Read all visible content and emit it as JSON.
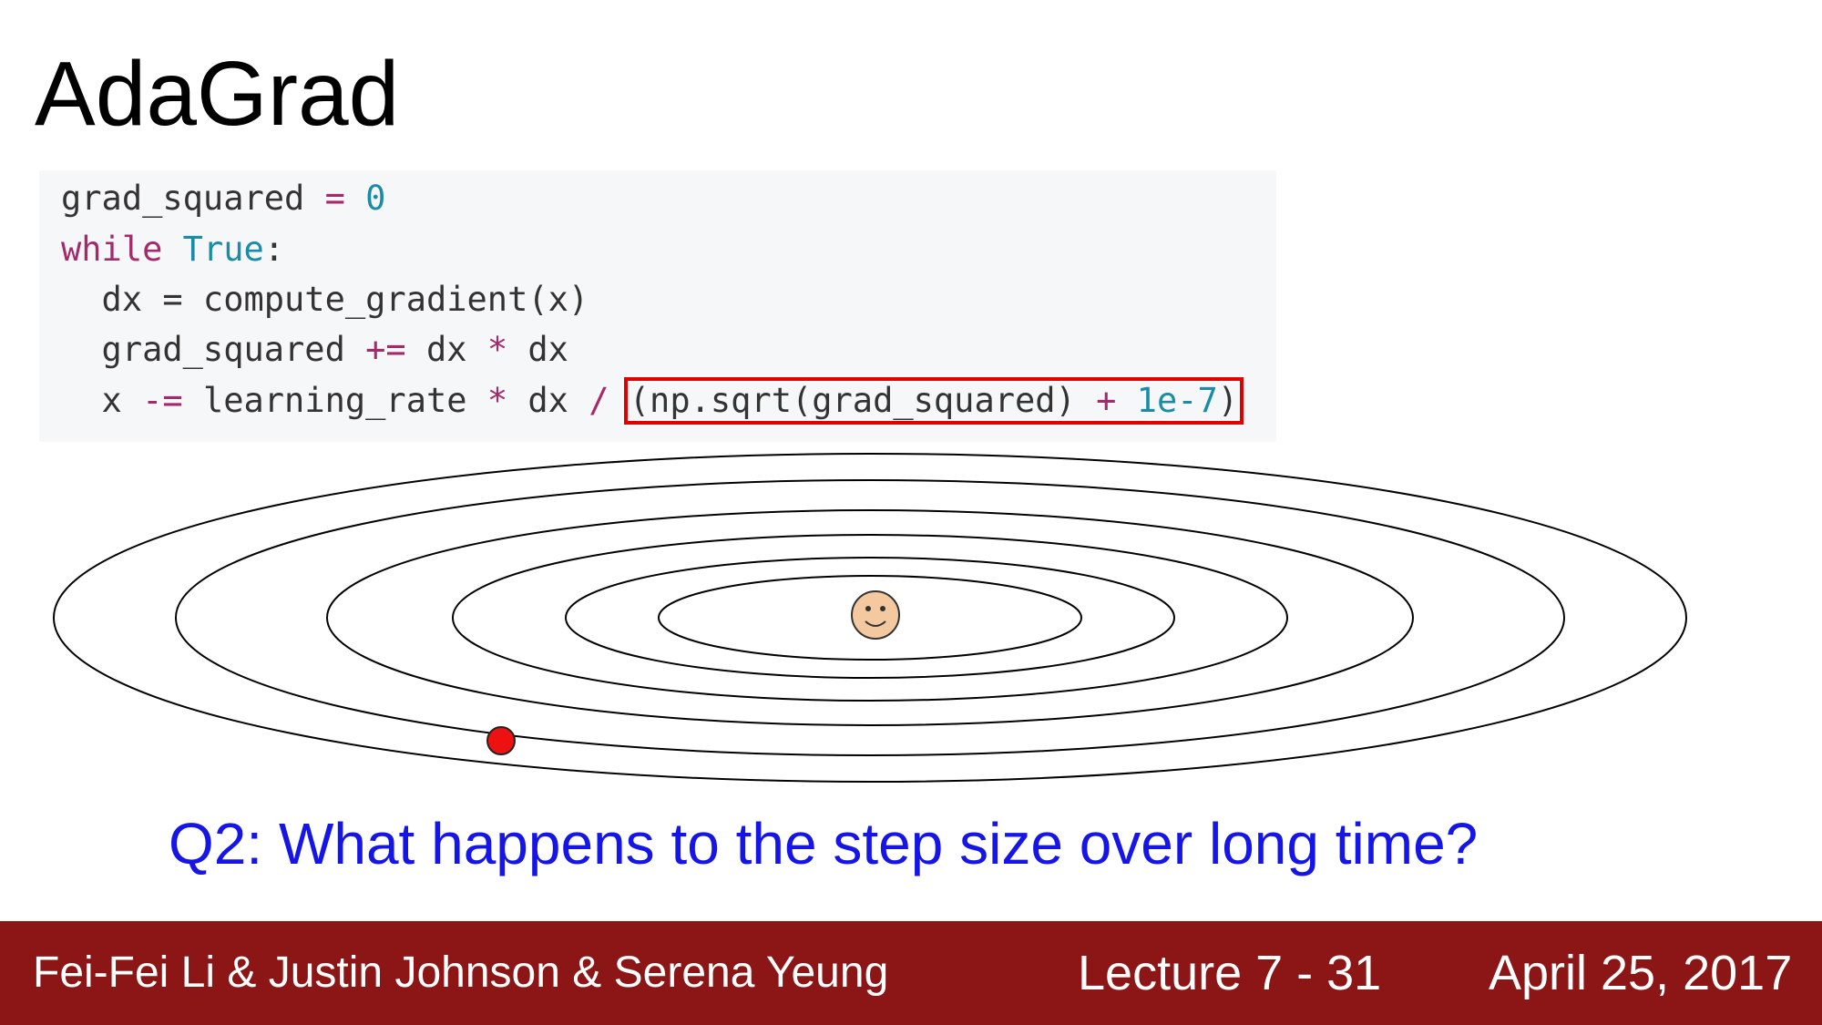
{
  "slide": {
    "title": "AdaGrad",
    "question": "Q2: What happens to the step size over long time?"
  },
  "code": {
    "line1": {
      "var": "grad_squared",
      "op": " = ",
      "num": "0"
    },
    "line2": {
      "kw": "while",
      "bool": "True",
      "colon": ":"
    },
    "line3": {
      "text": "  dx = compute_gradient(x)"
    },
    "line4": {
      "a": "  grad_squared ",
      "op": "+=",
      "b": " dx ",
      "op2": "*",
      "c": " dx"
    },
    "line5": {
      "a": "  x ",
      "op1": "-=",
      "b": " learning_rate ",
      "op2": "*",
      "c": " dx ",
      "op3": "/",
      "hl_a": "(np.sqrt(grad_squared) ",
      "hl_op": "+",
      "hl_num": " 1e-7",
      "hl_close": ")"
    }
  },
  "footer": {
    "authors": "Fei-Fei Li & Justin Johnson & Serena Yeung",
    "lecture": "Lecture 7 - 31",
    "date": "April 25, 2017"
  },
  "colors": {
    "footer_bg": "#8c1515",
    "question": "#1515e8",
    "highlight_box": "#e00000",
    "point": "#ee1111",
    "smiley_fill": "#f5c9a0"
  }
}
